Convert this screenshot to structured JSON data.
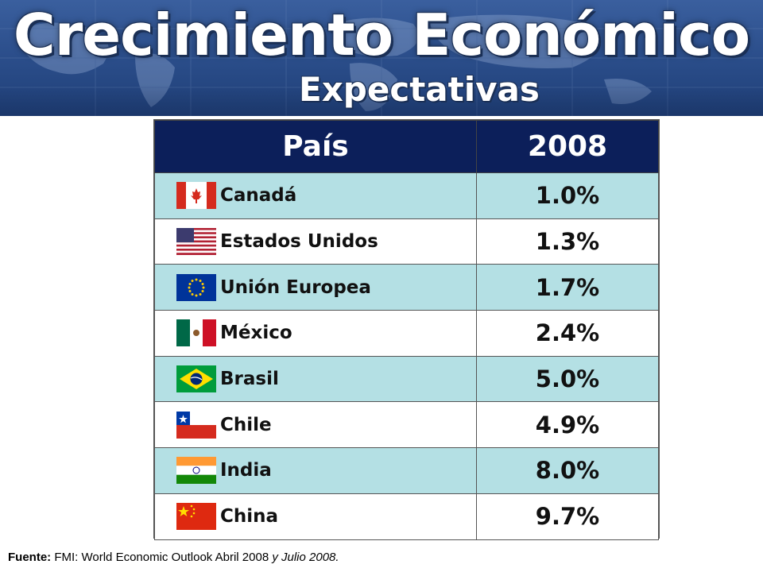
{
  "header": {
    "title": "Crecimiento Económico",
    "subtitle": "Expectativas"
  },
  "table": {
    "headers": [
      "País",
      "2008"
    ],
    "rows": [
      {
        "country": "Canadá",
        "value": "1.0%",
        "flag": "canada-flag-icon"
      },
      {
        "country": "Estados Unidos",
        "value": "1.3%",
        "flag": "usa-flag-icon"
      },
      {
        "country": "Unión Europea",
        "value": "1.7%",
        "flag": "eu-flag-icon"
      },
      {
        "country": "México",
        "value": "2.4%",
        "flag": "mexico-flag-icon"
      },
      {
        "country": "Brasil",
        "value": "5.0%",
        "flag": "brazil-flag-icon"
      },
      {
        "country": "Chile",
        "value": "4.9%",
        "flag": "chile-flag-icon"
      },
      {
        "country": "India",
        "value": "8.0%",
        "flag": "india-flag-icon"
      },
      {
        "country": "China",
        "value": "9.7%",
        "flag": "china-flag-icon"
      }
    ]
  },
  "source": {
    "label": "Fuente:",
    "text": " FMI: World Economic Outlook Abril 2008 ",
    "italic": "y Julio 2008."
  },
  "colors": {
    "header_bg": "#0c1f5a",
    "row_light": "#b4e0e4",
    "banner": "#2c4f8c"
  }
}
